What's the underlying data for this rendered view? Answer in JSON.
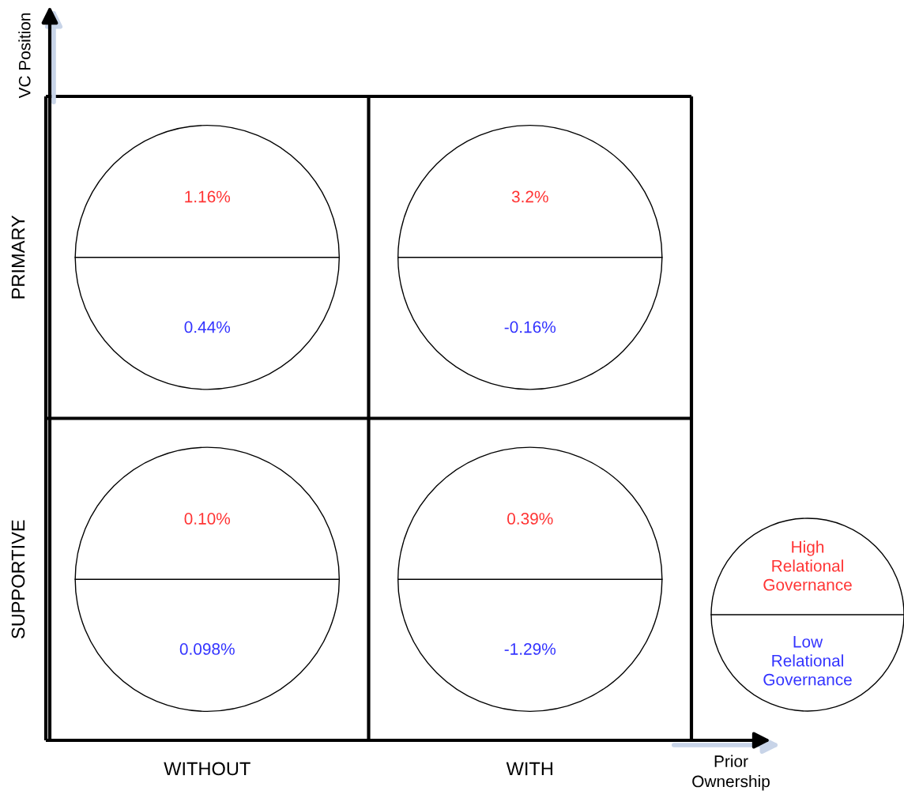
{
  "chart_data": {
    "type": "other",
    "categories": [
      "WITHOUT",
      "WITH"
    ],
    "y_categories": [
      "PRIMARY",
      "SUPPORTIVE"
    ],
    "xlabel": "Prior Ownership",
    "ylabel": "VC Position",
    "series": [
      {
        "name": "High Relational Governance",
        "color": "#ff3333",
        "values": [
          1.16,
          3.2
        ],
        "value_labels": [
          "1.16%",
          "3.2%"
        ]
      },
      {
        "name": "Low Relational Governance",
        "color": "#3333ff",
        "values": [
          0.44,
          -0.16
        ],
        "value_labels": [
          "0.44%",
          "-0.16%"
        ]
      },
      {
        "color": "#ff3333",
        "values": [
          0.1,
          0.39
        ],
        "value_labels": [
          "0.10%",
          "0.39%"
        ]
      },
      {
        "color": "#3333ff",
        "values": [
          0.098,
          -1.29
        ],
        "value_labels": [
          "0.098%",
          "-1.29%"
        ]
      }
    ]
  }
}
